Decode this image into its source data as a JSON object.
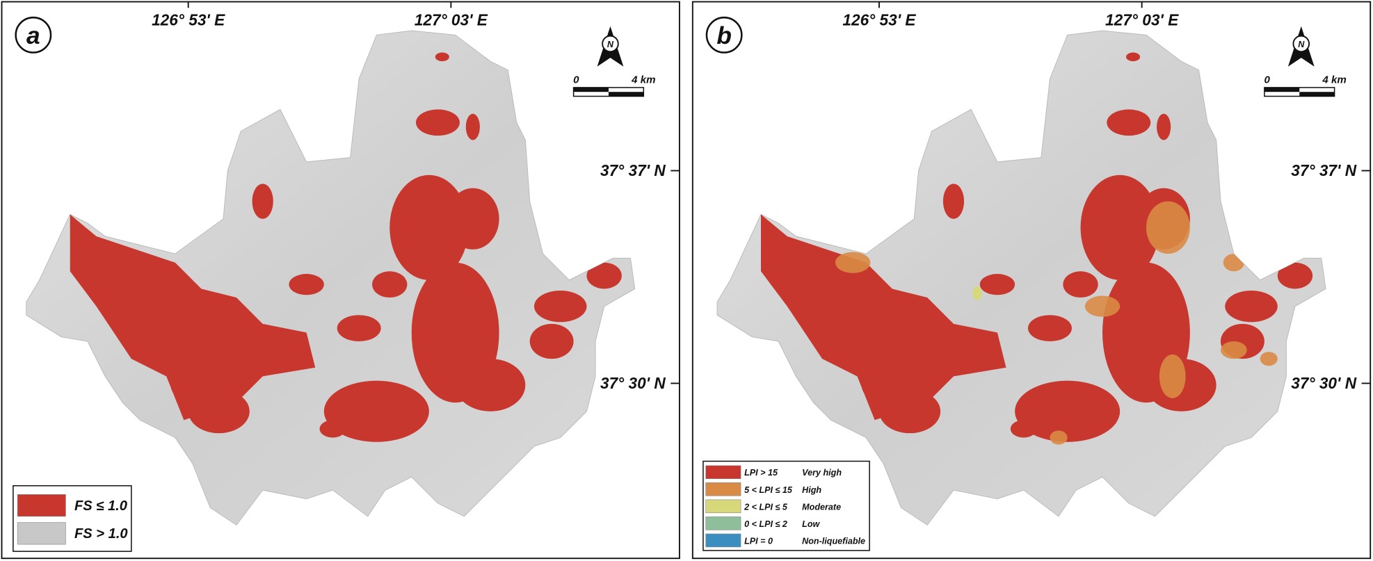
{
  "panels": [
    {
      "label": "a",
      "lon_labels": [
        "126° 53' E",
        "127° 03' E"
      ],
      "lat_labels": [
        "37° 37' N",
        "37° 30' N"
      ],
      "north": "N",
      "scale": {
        "start": "0",
        "end": "4 km"
      },
      "legend": [
        {
          "label": "FS ≤ 1.0",
          "color": "#c8372d"
        },
        {
          "label": "FS > 1.0",
          "color": "#c8c8c8"
        }
      ]
    },
    {
      "label": "b",
      "lon_labels": [
        "126° 53' E",
        "127° 03' E"
      ],
      "lat_labels": [
        "37° 37' N",
        "37° 30' N"
      ],
      "north": "N",
      "scale": {
        "start": "0",
        "end": "4 km"
      },
      "legend": [
        {
          "label": "LPI > 15",
          "class": "Very high",
          "color": "#c8372d"
        },
        {
          "label": "5 < LPI ≤ 15",
          "class": "High",
          "color": "#d98b45"
        },
        {
          "label": "2 < LPI ≤ 5",
          "class": "Moderate",
          "color": "#d6d87a"
        },
        {
          "label": "0 < LPI ≤ 2",
          "class": "Low",
          "color": "#8fbf9a"
        },
        {
          "label": "LPI = 0",
          "class": "Non-liquefiable",
          "color": "#3b8fc0"
        }
      ]
    }
  ]
}
